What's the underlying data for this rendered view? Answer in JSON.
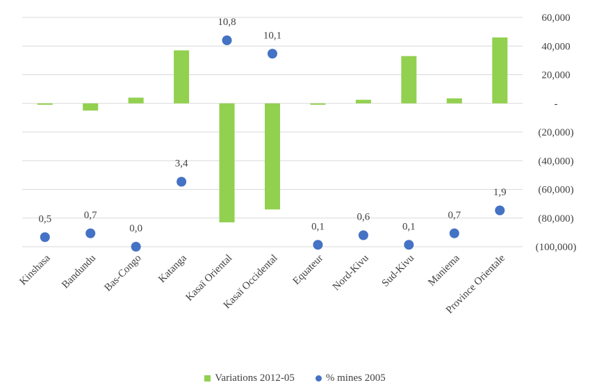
{
  "chart_data": {
    "type": "bar",
    "title": "",
    "categories": [
      "Kinshasa",
      "Bandundu",
      "Bas-Congo",
      "Katanga",
      "Kasaï Oriental",
      "Kasaï Occidental",
      "Equateur",
      "Nord-Kivu",
      "Sud-Kivu",
      "Maniema",
      "Province Orientale"
    ],
    "series": [
      {
        "name": "Variations 2012-05",
        "type": "bar",
        "axis": "right",
        "color": "#92D050",
        "values": [
          -500,
          -5000,
          4000,
          37000,
          -83000,
          -74000,
          -800,
          2500,
          33000,
          3500,
          46000
        ]
      },
      {
        "name": "% mines 2005",
        "type": "scatter",
        "axis": "hidden",
        "color": "#4472C4",
        "values": [
          0.5,
          0.7,
          0.0,
          3.4,
          10.8,
          10.1,
          0.1,
          0.6,
          0.1,
          0.7,
          1.9
        ],
        "labels": [
          "0,5",
          "0,7",
          "0,0",
          "3,4",
          "10,8",
          "10,1",
          "0,1",
          "0,6",
          "0,1",
          "0,7",
          "1,9"
        ]
      }
    ],
    "y_right": {
      "ylim": [
        -100000,
        60000
      ],
      "ticks": [
        60000,
        40000,
        20000,
        0,
        -20000,
        -40000,
        -60000,
        -80000,
        -100000
      ],
      "tick_labels": [
        "60,000",
        "40,000",
        "20,000",
        "-",
        "(20,000)",
        "(40,000)",
        "(60,000)",
        "(80,000)",
        "(100,000)"
      ]
    },
    "y_hidden": {
      "ylim": [
        0,
        12
      ]
    },
    "grid": true,
    "legend": "bottom"
  }
}
